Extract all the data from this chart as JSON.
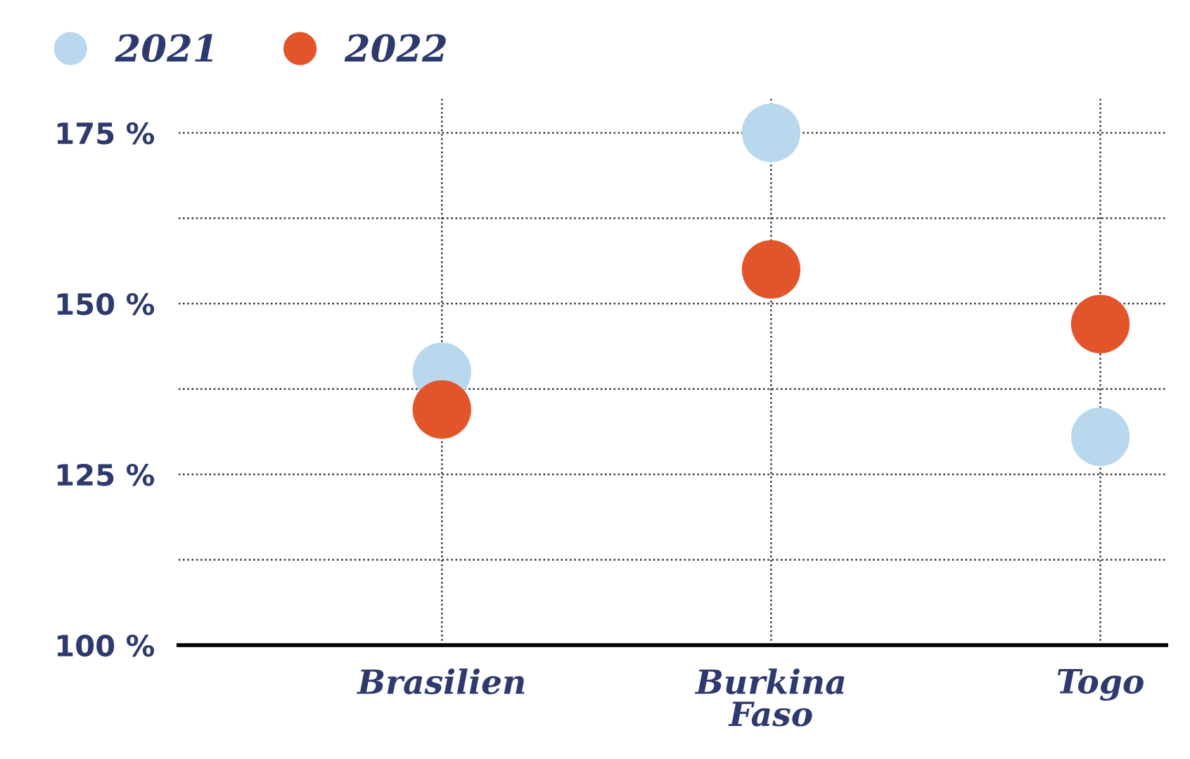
{
  "chart_data": {
    "type": "scatter",
    "categories": [
      "Brasilien",
      "Burkina\nFaso",
      "Togo"
    ],
    "series": [
      {
        "name": "2021",
        "color": "#b9d8ee",
        "values": [
          140,
          175,
          130.5
        ]
      },
      {
        "name": "2022",
        "color": "#e2542a",
        "values": [
          134.5,
          155,
          147
        ]
      }
    ],
    "ylim": [
      100,
      180
    ],
    "yticks": [
      {
        "value": 100,
        "label": "100 %"
      },
      {
        "value": 112.5,
        "label": null
      },
      {
        "value": 125,
        "label": "125 %"
      },
      {
        "value": 137.5,
        "label": null
      },
      {
        "value": 150,
        "label": "150 %"
      },
      {
        "value": 162.5,
        "label": null
      },
      {
        "value": 175,
        "label": "175 %"
      }
    ],
    "grid": true,
    "legend": "top left",
    "marker": "circle"
  }
}
